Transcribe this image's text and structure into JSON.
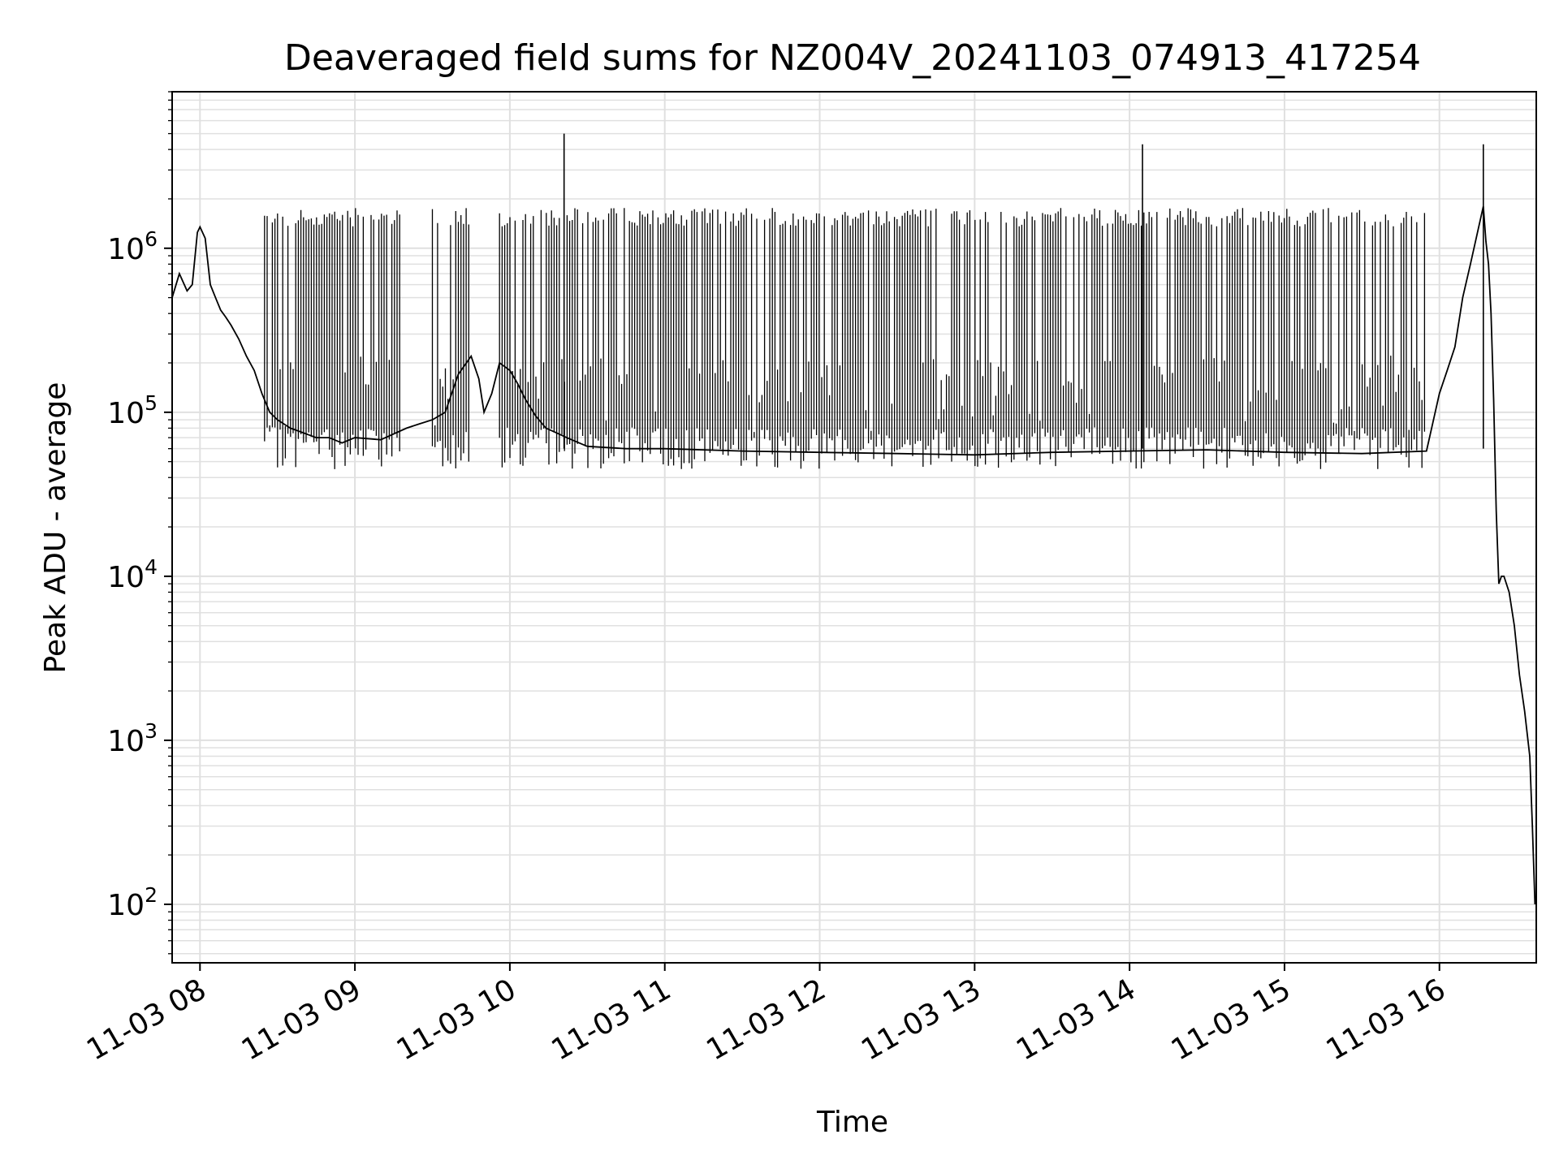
{
  "chart_data": {
    "type": "line",
    "title": "Deaveraged field sums for NZ004V_20241103_074913_417254",
    "xlabel": "Time",
    "ylabel": "Peak ADU - average",
    "yscale": "log",
    "grid": true,
    "ylim": [
      44,
      9000000
    ],
    "xlim": [
      "2024-11-03 07:49:13",
      "2024-11-03 16:37:30"
    ],
    "xticks": [
      "2024-11-03 08:00",
      "2024-11-03 09:00",
      "2024-11-03 10:00",
      "2024-11-03 11:00",
      "2024-11-03 12:00",
      "2024-11-03 13:00",
      "2024-11-03 14:00",
      "2024-11-03 15:00",
      "2024-11-03 16:00"
    ],
    "xtick_labels": [
      "11-03 08",
      "11-03 09",
      "11-03 10",
      "11-03 11",
      "11-03 12",
      "11-03 13",
      "11-03 14",
      "11-03 15",
      "11-03 16"
    ],
    "ytick_base": "10",
    "ytick_exponents": [
      "2",
      "3",
      "4",
      "5",
      "6"
    ],
    "line_color": "#000000",
    "grid_color": "#e0e0e0",
    "series": [
      {
        "x": [
          "2024-11-03 07:49:13",
          "2024-11-03 07:52:00",
          "2024-11-03 07:55:00",
          "2024-11-03 07:57:00",
          "2024-11-03 07:59:00",
          "2024-11-03 08:00:00",
          "2024-11-03 08:02:00",
          "2024-11-03 08:04:00",
          "2024-11-03 08:06:00",
          "2024-11-03 08:08:00",
          "2024-11-03 08:10:00",
          "2024-11-03 08:12:00",
          "2024-11-03 08:15:00",
          "2024-11-03 08:18:00",
          "2024-11-03 08:21:00",
          "2024-11-03 08:24:00",
          "2024-11-03 08:27:00",
          "2024-11-03 08:30:00",
          "2024-11-03 08:35:00",
          "2024-11-03 08:40:00",
          "2024-11-03 08:45:00",
          "2024-11-03 08:50:00",
          "2024-11-03 08:55:00",
          "2024-11-03 09:00:00",
          "2024-11-03 09:10:00",
          "2024-11-03 09:20:00",
          "2024-11-03 09:25:00",
          "2024-11-03 09:30:00",
          "2024-11-03 09:35:00",
          "2024-11-03 09:40:00",
          "2024-11-03 09:45:00",
          "2024-11-03 09:48:00",
          "2024-11-03 09:50:00",
          "2024-11-03 09:53:00",
          "2024-11-03 09:56:00",
          "2024-11-03 10:00:00",
          "2024-11-03 10:03:00",
          "2024-11-03 10:06:00",
          "2024-11-03 10:10:00",
          "2024-11-03 10:14:00",
          "2024-11-03 10:18:00",
          "2024-11-03 10:22:00",
          "2024-11-03 10:30:00",
          "2024-11-03 10:45:00",
          "2024-11-03 11:00:00",
          "2024-11-03 11:30:00",
          "2024-11-03 12:00:00",
          "2024-11-03 12:30:00",
          "2024-11-03 13:00:00",
          "2024-11-03 13:30:00",
          "2024-11-03 14:00:00",
          "2024-11-03 14:30:00",
          "2024-11-03 15:00:00",
          "2024-11-03 15:30:00",
          "2024-11-03 15:55:00",
          "2024-11-03 16:00:00",
          "2024-11-03 16:03:00",
          "2024-11-03 16:06:00",
          "2024-11-03 16:09:00",
          "2024-11-03 16:12:00",
          "2024-11-03 16:15:00",
          "2024-11-03 16:17:00",
          "2024-11-03 16:18:00",
          "2024-11-03 16:19:00",
          "2024-11-03 16:20:00",
          "2024-11-03 16:21:00",
          "2024-11-03 16:22:00",
          "2024-11-03 16:23:00",
          "2024-11-03 16:24:00",
          "2024-11-03 16:25:00",
          "2024-11-03 16:27:00",
          "2024-11-03 16:29:00",
          "2024-11-03 16:31:00",
          "2024-11-03 16:33:00",
          "2024-11-03 16:35:00",
          "2024-11-03 16:36:00",
          "2024-11-03 16:37:00"
        ],
        "y": [
          500000,
          700000,
          550000,
          600000,
          1250000,
          1350000,
          1150000,
          600000,
          500000,
          420000,
          380000,
          340000,
          280000,
          220000,
          180000,
          130000,
          100000,
          90000,
          80000,
          75000,
          70000,
          70000,
          65000,
          70000,
          68000,
          80000,
          85000,
          90000,
          100000,
          170000,
          220000,
          160000,
          100000,
          130000,
          200000,
          180000,
          150000,
          120000,
          95000,
          80000,
          75000,
          70000,
          62000,
          60000,
          60000,
          58000,
          57000,
          56000,
          55000,
          57000,
          58000,
          59000,
          57000,
          56000,
          58000,
          130000,
          180000,
          250000,
          500000,
          800000,
          1300000,
          1800000,
          1100000,
          800000,
          400000,
          120000,
          25000,
          9000,
          10000,
          10000,
          8000,
          5000,
          2500,
          1500,
          800,
          300,
          100
        ]
      }
    ],
    "vertical_spikes": {
      "low": 60000,
      "high": 1600000,
      "segments": [
        [
          "2024-11-03 08:25",
          "2024-11-03 09:18"
        ],
        [
          "2024-11-03 09:30",
          "2024-11-03 09:45"
        ],
        [
          "2024-11-03 09:56",
          "2024-11-03 15:55"
        ]
      ]
    },
    "peaks": [
      {
        "x": "2024-11-03 10:21",
        "y": 5000000
      },
      {
        "x": "2024-11-03 14:05",
        "y": 4300000
      },
      {
        "x": "2024-11-03 16:17",
        "y": 4300000
      }
    ]
  }
}
